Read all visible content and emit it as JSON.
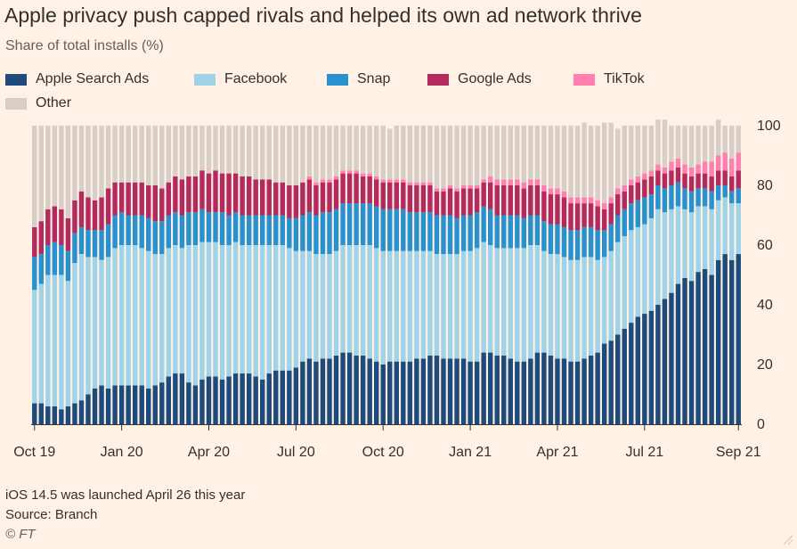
{
  "title": "Apple privacy push capped rivals and helped its own ad network thrive",
  "subtitle": "Share of total installs (%)",
  "note": "iOS 14.5 was launched April 26 this year",
  "source": "Source: Branch",
  "credit": "© FT",
  "colors": {
    "Apple Search Ads": "#1e4a7c",
    "Facebook": "#9fd3e8",
    "Snap": "#2a91cf",
    "Google Ads": "#b32a5e",
    "TikTok": "#ff7fb0",
    "Other": "#d7cfc7"
  },
  "chart_data": {
    "type": "bar",
    "stacked": true,
    "x_tick_labels": [
      "Oct 19",
      "Jan 20",
      "Apr 20",
      "Jul 20",
      "Oct 20",
      "Jan 21",
      "Apr 21",
      "Jul 21",
      "Sep 21"
    ],
    "y_ticks": [
      0,
      20,
      40,
      60,
      80,
      100
    ],
    "ylim": [
      0,
      100
    ],
    "y_axis_side": "right",
    "grid": false,
    "legend": "top",
    "series": [
      {
        "name": "Apple Search Ads",
        "values": [
          7,
          7,
          6,
          6,
          5,
          6,
          7,
          8,
          10,
          12,
          13,
          12,
          13,
          13,
          13,
          13,
          13,
          12,
          13,
          14,
          16,
          17,
          17,
          14,
          13,
          15,
          16,
          16,
          15,
          16,
          17,
          17,
          17,
          16,
          15,
          17,
          18,
          18,
          18,
          19,
          21,
          22,
          21,
          22,
          22,
          23,
          24,
          24,
          23,
          23,
          22,
          21,
          20,
          21,
          21,
          21,
          21,
          22,
          22,
          23,
          23,
          22,
          22,
          22,
          22,
          21,
          21,
          24,
          24,
          23,
          23,
          22,
          21,
          21,
          22,
          24,
          24,
          23,
          22,
          22,
          21,
          21,
          22,
          23,
          24,
          27,
          28,
          30,
          32,
          34,
          36,
          37,
          38,
          40,
          42,
          44,
          47,
          49,
          48,
          51,
          52,
          50,
          55,
          57,
          55,
          57
        ]
      },
      {
        "name": "Facebook",
        "values": [
          38,
          40,
          44,
          44,
          45,
          42,
          47,
          49,
          46,
          44,
          42,
          44,
          46,
          47,
          47,
          47,
          46,
          46,
          44,
          43,
          43,
          43,
          42,
          46,
          47,
          46,
          45,
          45,
          45,
          44,
          44,
          43,
          43,
          44,
          45,
          43,
          42,
          42,
          41,
          39,
          37,
          36,
          36,
          35,
          35,
          35,
          36,
          36,
          37,
          37,
          38,
          38,
          38,
          37,
          37,
          37,
          37,
          36,
          36,
          35,
          34,
          35,
          35,
          35,
          36,
          37,
          38,
          37,
          36,
          36,
          36,
          37,
          38,
          38,
          38,
          36,
          34,
          34,
          35,
          34,
          34,
          34,
          34,
          33,
          31,
          29,
          30,
          31,
          31,
          31,
          30,
          30,
          31,
          32,
          29,
          28,
          26,
          23,
          23,
          22,
          21,
          22,
          20,
          19,
          19,
          17
        ]
      },
      {
        "name": "Snap",
        "values": [
          11,
          10,
          10,
          11,
          10,
          10,
          10,
          9,
          9,
          9,
          10,
          11,
          11,
          11,
          10,
          10,
          11,
          11,
          11,
          11,
          11,
          11,
          11,
          11,
          11,
          11,
          10,
          10,
          11,
          10,
          10,
          10,
          10,
          10,
          10,
          10,
          10,
          10,
          10,
          11,
          12,
          13,
          13,
          14,
          14,
          14,
          14,
          14,
          14,
          14,
          14,
          14,
          14,
          14,
          14,
          14,
          13,
          13,
          13,
          13,
          13,
          13,
          13,
          12,
          12,
          12,
          12,
          12,
          12,
          11,
          11,
          11,
          11,
          10,
          10,
          10,
          10,
          10,
          10,
          10,
          10,
          10,
          10,
          10,
          10,
          9,
          9,
          9,
          9,
          9,
          9,
          9,
          8,
          8,
          8,
          8,
          8,
          7,
          7,
          6,
          6,
          6,
          5,
          4,
          4,
          5
        ]
      },
      {
        "name": "Google Ads",
        "values": [
          10,
          11,
          12,
          12,
          12,
          11,
          11,
          12,
          11,
          10,
          11,
          12,
          11,
          10,
          11,
          11,
          11,
          11,
          12,
          11,
          11,
          12,
          12,
          12,
          12,
          13,
          13,
          14,
          13,
          14,
          13,
          13,
          13,
          12,
          12,
          12,
          11,
          11,
          11,
          11,
          11,
          11,
          10,
          10,
          10,
          10,
          10,
          10,
          10,
          9,
          9,
          9,
          9,
          9,
          9,
          9,
          9,
          9,
          9,
          9,
          8,
          8,
          9,
          9,
          9,
          9,
          8,
          8,
          9,
          10,
          10,
          10,
          10,
          10,
          10,
          10,
          10,
          10,
          10,
          10,
          9,
          9,
          8,
          8,
          8,
          7,
          7,
          7,
          6,
          6,
          6,
          6,
          6,
          5,
          5,
          5,
          5,
          5,
          5,
          5,
          5,
          5,
          5,
          5,
          5,
          6
        ]
      },
      {
        "name": "TikTok",
        "values": [
          0,
          0,
          0,
          0,
          0,
          0,
          0,
          0,
          0,
          0,
          0,
          0,
          0,
          0,
          0,
          0,
          0,
          0,
          0,
          0,
          0,
          0,
          0,
          0,
          0,
          0,
          0,
          0,
          0,
          0,
          0,
          0,
          0,
          0,
          0,
          0,
          0,
          0,
          0,
          0,
          0,
          1,
          1,
          1,
          1,
          1,
          1,
          1,
          1,
          1,
          1,
          1,
          1,
          1,
          1,
          1,
          1,
          1,
          1,
          1,
          1,
          1,
          1,
          1,
          1,
          1,
          1,
          1,
          2,
          2,
          2,
          2,
          2,
          2,
          2,
          2,
          2,
          2,
          2,
          2,
          2,
          2,
          2,
          2,
          2,
          2,
          2,
          2,
          2,
          2,
          2,
          2,
          2,
          2,
          2,
          3,
          3,
          3,
          3,
          3,
          4,
          5,
          5,
          6,
          6,
          6
        ]
      },
      {
        "name": "Other",
        "values": [
          34,
          32,
          28,
          27,
          28,
          31,
          25,
          22,
          24,
          25,
          24,
          21,
          19,
          19,
          19,
          19,
          19,
          20,
          20,
          21,
          19,
          17,
          18,
          17,
          17,
          15,
          16,
          15,
          16,
          16,
          16,
          17,
          17,
          18,
          18,
          18,
          19,
          19,
          20,
          20,
          19,
          17,
          19,
          18,
          18,
          17,
          15,
          15,
          15,
          16,
          16,
          17,
          18,
          17,
          18,
          18,
          19,
          19,
          19,
          19,
          21,
          21,
          20,
          21,
          20,
          20,
          20,
          18,
          17,
          18,
          18,
          18,
          18,
          19,
          18,
          18,
          20,
          21,
          21,
          22,
          24,
          24,
          25,
          24,
          25,
          27,
          25,
          20,
          20,
          18,
          17,
          16,
          15,
          15,
          16,
          12,
          11,
          13,
          14,
          13,
          12,
          12,
          12,
          9,
          11,
          9
        ]
      }
    ]
  }
}
